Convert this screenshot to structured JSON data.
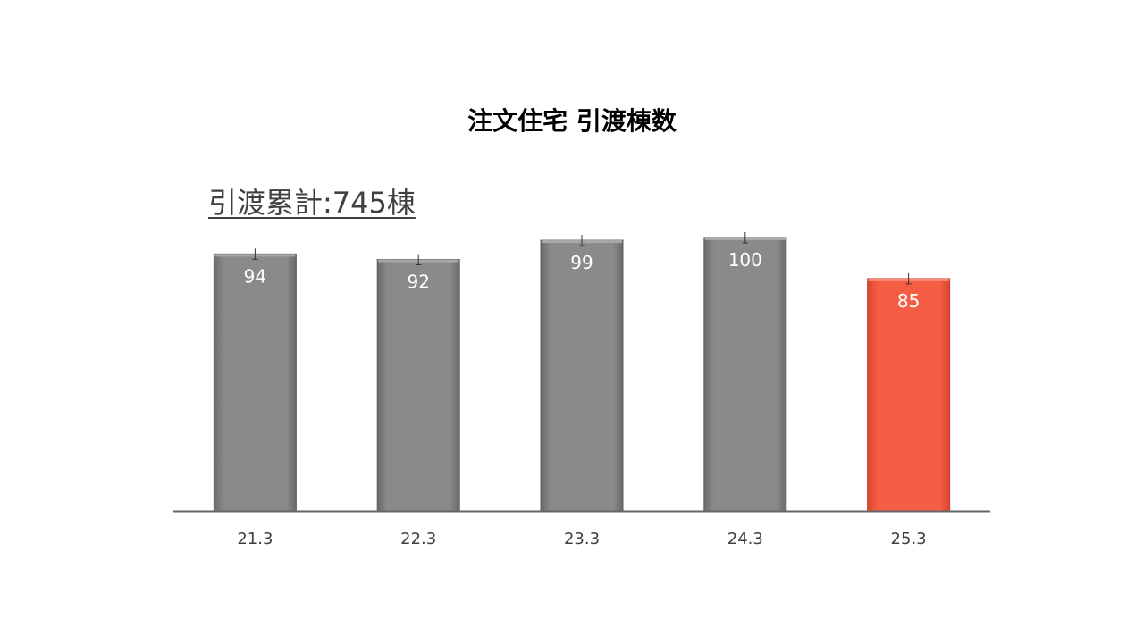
{
  "title": "注文住宅 引渡棟数",
  "annotation": "引渡累計:745棟",
  "colors": {
    "bar": "#858585",
    "bar_dark": "#5f5f5f",
    "highlight": "#f55d44",
    "highlight_dark": "#c8412c",
    "axis": "#666666",
    "tick_text": "#404040",
    "value_text": "#ffffff"
  },
  "chart_data": {
    "type": "bar",
    "title": "注文住宅 引渡棟数",
    "categories": [
      "21.3",
      "22.3",
      "23.3",
      "24.3",
      "25.3"
    ],
    "values": [
      94,
      92,
      99,
      100,
      85
    ],
    "data_labels": [
      "94",
      "92",
      "99",
      "100",
      "85"
    ],
    "highlight_index": 4,
    "xlabel": "",
    "ylabel": "",
    "ylim": [
      0,
      108
    ],
    "grid": false,
    "legend": "none",
    "annotation": "引渡累計:745棟"
  }
}
